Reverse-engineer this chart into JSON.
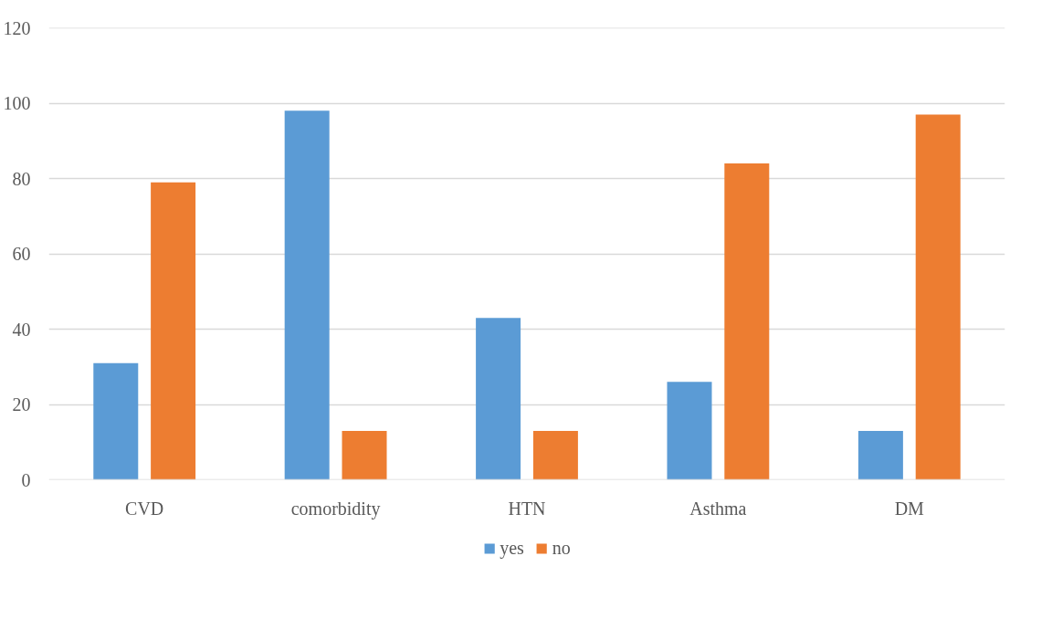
{
  "chart_data": {
    "type": "bar",
    "categories": [
      "CVD",
      "comorbidity",
      "HTN",
      "Asthma",
      "DM"
    ],
    "series": [
      {
        "name": "yes",
        "color": "#5b9bd5",
        "values": [
          31,
          98,
          43,
          26,
          13
        ]
      },
      {
        "name": "no",
        "color": "#ed7d31",
        "values": [
          79,
          13,
          13,
          84,
          97
        ]
      }
    ],
    "ylim": [
      0,
      120
    ],
    "yticks": [
      0,
      20,
      40,
      60,
      80,
      100,
      120
    ],
    "grid": "y",
    "legend": "bottom"
  }
}
